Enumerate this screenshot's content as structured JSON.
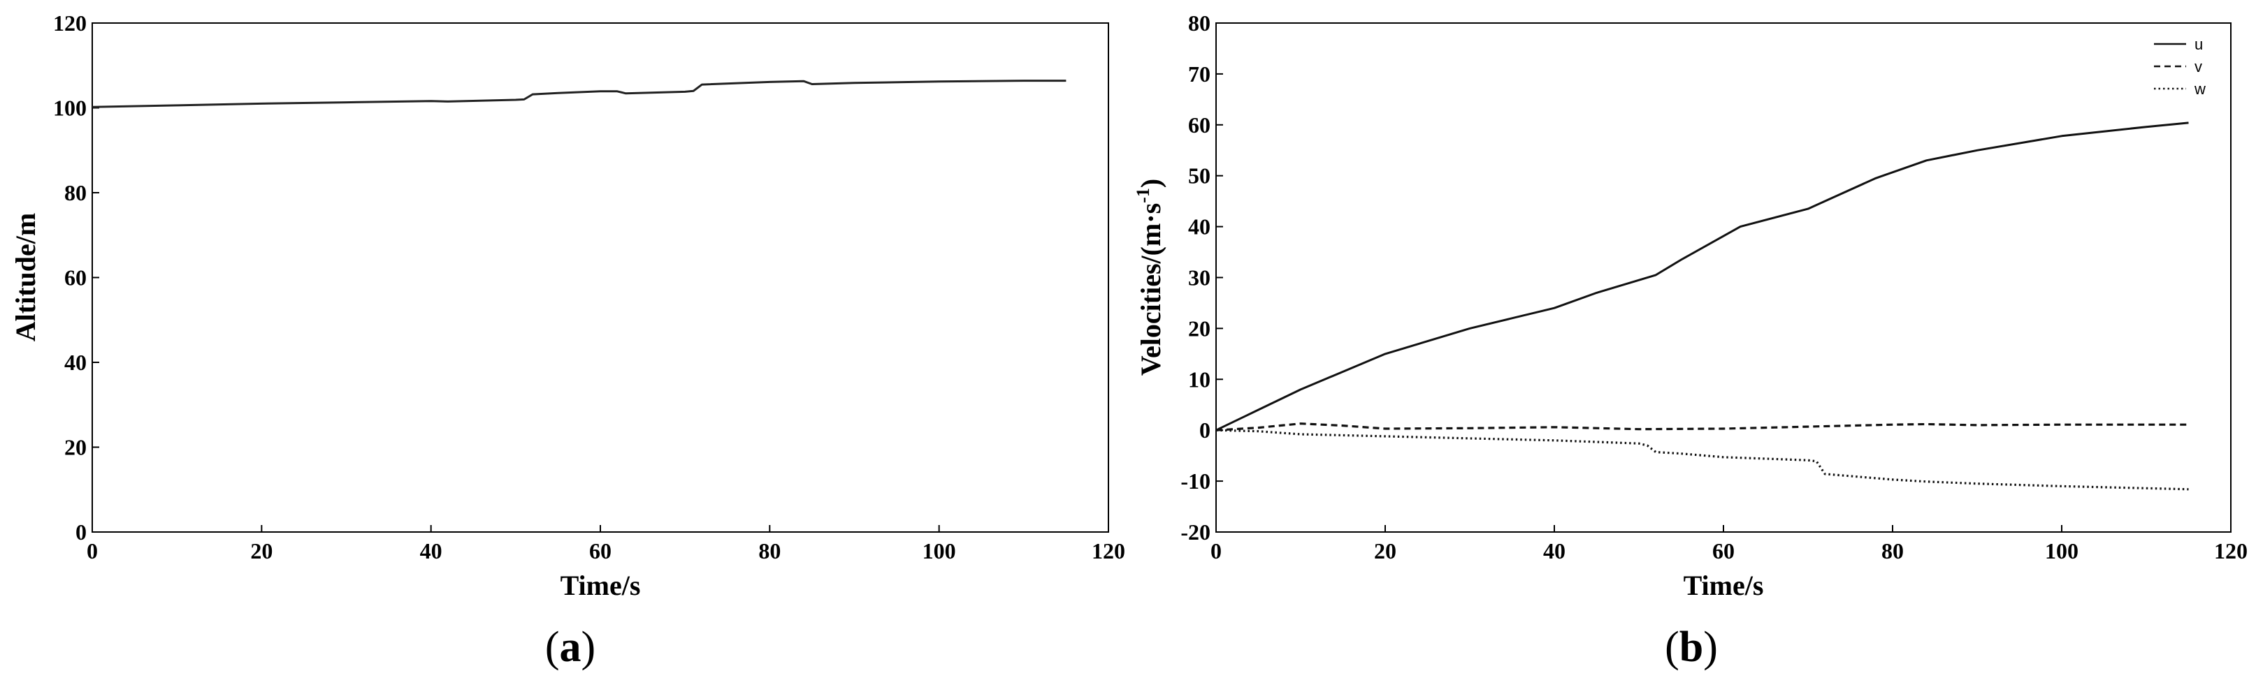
{
  "chart_data": [
    {
      "type": "line",
      "panel_label": "a",
      "xlabel": "Time/s",
      "ylabel": "Altitude/m",
      "xlim": [
        0,
        120
      ],
      "ylim": [
        0,
        120
      ],
      "xticks": [
        0,
        20,
        40,
        60,
        80,
        100,
        120
      ],
      "yticks": [
        0,
        20,
        40,
        60,
        80,
        100,
        120
      ],
      "grid": false,
      "series": [
        {
          "color": "#222222",
          "style": "solid",
          "points": [
            [
              0,
              100.2
            ],
            [
              10,
              100.6
            ],
            [
              20,
              101.0
            ],
            [
              30,
              101.3
            ],
            [
              40,
              101.6
            ],
            [
              42,
              101.5
            ],
            [
              50,
              101.9
            ],
            [
              51,
              102.0
            ],
            [
              52,
              103.2
            ],
            [
              55,
              103.5
            ],
            [
              60,
              103.9
            ],
            [
              62,
              103.9
            ],
            [
              63,
              103.4
            ],
            [
              70,
              103.8
            ],
            [
              71,
              104.0
            ],
            [
              72,
              105.5
            ],
            [
              80,
              106.1
            ],
            [
              84,
              106.3
            ],
            [
              85,
              105.6
            ],
            [
              90,
              105.9
            ],
            [
              100,
              106.2
            ],
            [
              110,
              106.4
            ],
            [
              115,
              106.4
            ]
          ]
        }
      ]
    },
    {
      "type": "line",
      "panel_label": "b",
      "xlabel": "Time/s",
      "ylabel": "Velocities/(m·s",
      "ylabel_sup": "-1",
      "ylabel_end": ")",
      "xlim": [
        0,
        120
      ],
      "ylim": [
        -20,
        80
      ],
      "xticks": [
        0,
        20,
        40,
        60,
        80,
        100,
        120
      ],
      "yticks": [
        -20,
        -10,
        0,
        10,
        20,
        30,
        40,
        50,
        60,
        70,
        80
      ],
      "grid": false,
      "legend_position": "top-right",
      "series": [
        {
          "name": "u",
          "color": "#111111",
          "style": "solid",
          "points": [
            [
              0,
              0
            ],
            [
              5,
              4
            ],
            [
              10,
              8
            ],
            [
              20,
              15
            ],
            [
              30,
              20
            ],
            [
              40,
              24
            ],
            [
              45,
              27
            ],
            [
              52,
              30.5
            ],
            [
              55,
              33.5
            ],
            [
              62,
              40
            ],
            [
              70,
              43.5
            ],
            [
              72,
              45
            ],
            [
              78,
              49.5
            ],
            [
              84,
              53
            ],
            [
              90,
              55
            ],
            [
              100,
              57.8
            ],
            [
              110,
              59.6
            ],
            [
              115,
              60.4
            ]
          ]
        },
        {
          "name": "v",
          "color": "#111111",
          "style": "dashed",
          "points": [
            [
              0,
              0
            ],
            [
              5,
              0.5
            ],
            [
              10,
              1.3
            ],
            [
              15,
              0.9
            ],
            [
              20,
              0.3
            ],
            [
              30,
              0.4
            ],
            [
              40,
              0.6
            ],
            [
              50,
              0.2
            ],
            [
              60,
              0.3
            ],
            [
              70,
              0.7
            ],
            [
              80,
              1.1
            ],
            [
              84,
              1.2
            ],
            [
              90,
              1.0
            ],
            [
              100,
              1.1
            ],
            [
              115,
              1.1
            ]
          ]
        },
        {
          "name": "w",
          "color": "#111111",
          "style": "dotted",
          "points": [
            [
              0,
              0
            ],
            [
              5,
              -0.2
            ],
            [
              10,
              -0.8
            ],
            [
              20,
              -1.2
            ],
            [
              30,
              -1.6
            ],
            [
              40,
              -2.0
            ],
            [
              50,
              -2.6
            ],
            [
              51,
              -3.0
            ],
            [
              52,
              -4.3
            ],
            [
              55,
              -4.6
            ],
            [
              60,
              -5.3
            ],
            [
              70,
              -5.9
            ],
            [
              71,
              -6.1
            ],
            [
              72,
              -8.6
            ],
            [
              80,
              -9.7
            ],
            [
              84,
              -10.1
            ],
            [
              90,
              -10.5
            ],
            [
              100,
              -11.0
            ],
            [
              110,
              -11.4
            ],
            [
              115,
              -11.6
            ]
          ]
        }
      ]
    }
  ]
}
